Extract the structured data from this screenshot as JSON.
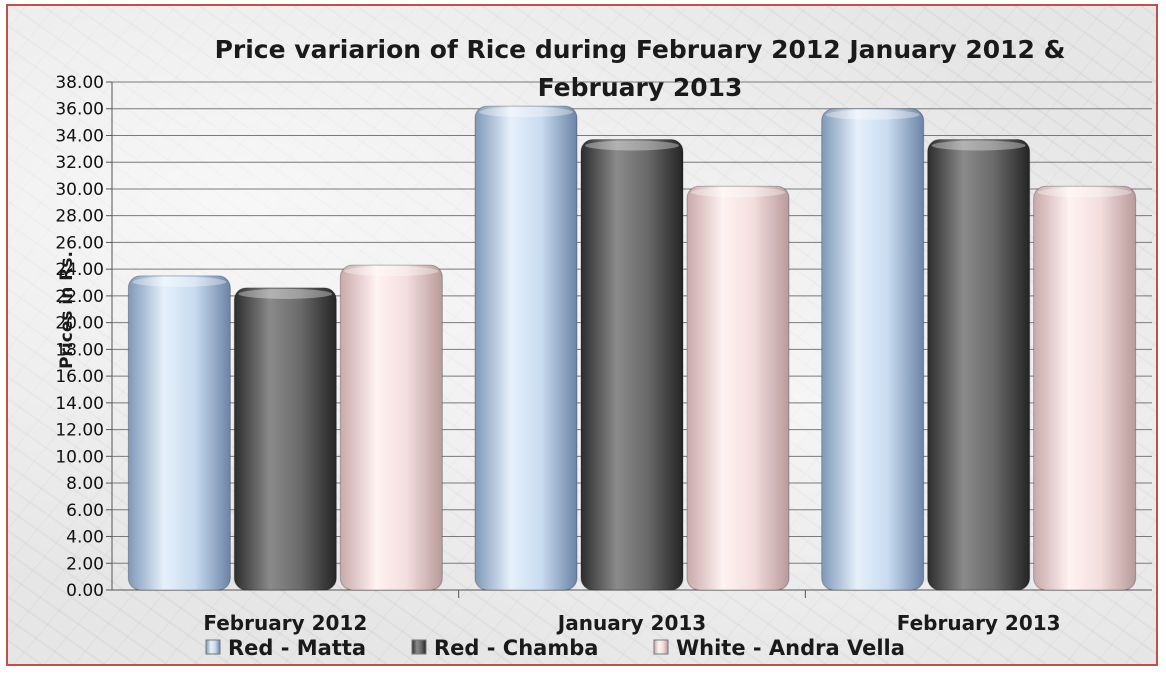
{
  "chart_data": {
    "type": "bar",
    "title_lines": [
      "Price variarion of Rice during February  2012 January 2012 &",
      "February 2013"
    ],
    "ylabel": "Prices in Rs.",
    "xlabel": "",
    "ylim": [
      0,
      38
    ],
    "ytick_step": 2,
    "ytick_labels": [
      "0.00",
      "2.00",
      "4.00",
      "6.00",
      "8.00",
      "10.00",
      "12.00",
      "14.00",
      "16.00",
      "18.00",
      "20.00",
      "22.00",
      "24.00",
      "26.00",
      "28.00",
      "30.00",
      "32.00",
      "34.00",
      "36.00",
      "38.00"
    ],
    "grid": true,
    "legend_position": "bottom",
    "categories": [
      "February 2012",
      "January 2013",
      "February 2013"
    ],
    "series": [
      {
        "name": "Red - Matta",
        "values": [
          23.5,
          36.2,
          36.0
        ],
        "color": "#b8cde6"
      },
      {
        "name": "Red - Chamba",
        "values": [
          22.6,
          33.7,
          33.7
        ],
        "color": "#5a5a5a"
      },
      {
        "name": "White - Andra Vella",
        "values": [
          24.3,
          30.2,
          30.2
        ],
        "color": "#f0d6d6"
      }
    ]
  }
}
